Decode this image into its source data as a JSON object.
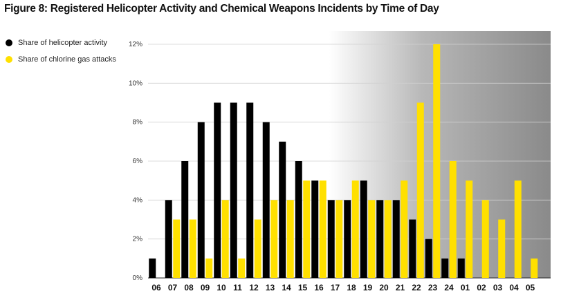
{
  "chart_data": {
    "type": "bar",
    "title": "Figure 8: Registered Helicopter Activity and Chemical Weapons Incidents by Time of Day",
    "xlabel": "",
    "ylabel": "",
    "categories": [
      "06",
      "07",
      "08",
      "09",
      "10",
      "11",
      "12",
      "13",
      "14",
      "15",
      "16",
      "17",
      "18",
      "19",
      "20",
      "21",
      "22",
      "23",
      "24",
      "01",
      "02",
      "03",
      "04",
      "05"
    ],
    "series": [
      {
        "name": "Share of helicopter activity",
        "color": "#000000",
        "values": [
          1,
          4,
          6,
          8,
          9,
          9,
          9,
          8,
          7,
          6,
          5,
          4,
          4,
          5,
          4,
          4,
          3,
          2,
          1,
          1,
          0,
          0,
          0,
          0
        ]
      },
      {
        "name": "Share of chlorine gas attacks",
        "color": "#FFE000",
        "values": [
          0,
          3,
          3,
          1,
          4,
          1,
          3,
          4,
          4,
          5,
          5,
          4,
          5,
          4,
          4,
          5,
          9,
          12,
          6,
          5,
          4,
          3,
          5,
          1
        ]
      }
    ],
    "ylim": [
      0,
      12
    ],
    "yticks": [
      0,
      2,
      4,
      6,
      8,
      10,
      12
    ],
    "ytick_labels": [
      "0%",
      "2%",
      "4%",
      "6%",
      "8%",
      "10%",
      "12%"
    ],
    "grid": true,
    "legend": "top-left",
    "background_gradient": [
      "#ffffff",
      "#8a8a8a"
    ]
  }
}
